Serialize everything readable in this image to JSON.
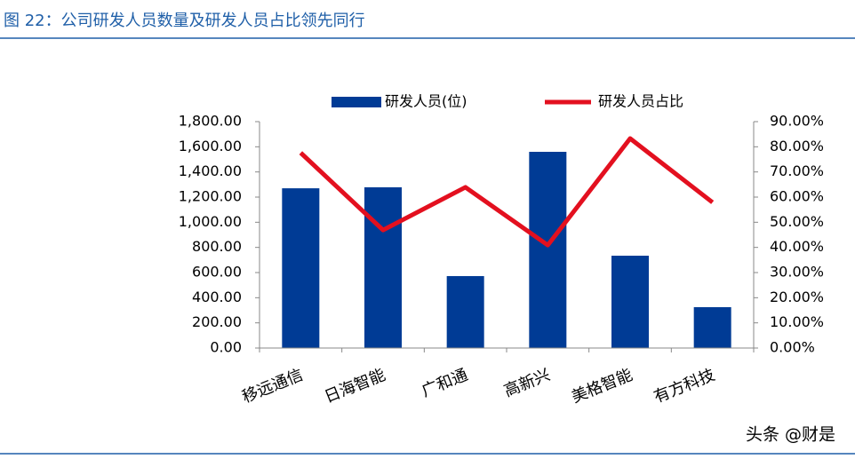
{
  "header": {
    "title": "图 22：公司研发人员数量及研发人员占比领先同行"
  },
  "watermark": "头条 @财是",
  "chart_data": {
    "type": "combo",
    "categories": [
      "移远通信",
      "日海智能",
      "广和通",
      "高新兴",
      "美格智能",
      "有方科技"
    ],
    "series": [
      {
        "name": "研发人员(位)",
        "type": "bar",
        "color": "#003b95",
        "axis": "y",
        "values": [
          1270,
          1278,
          572,
          1560,
          734,
          325
        ]
      },
      {
        "name": "研发人员占比",
        "type": "line",
        "color": "#e3101f",
        "axis": "y2",
        "values": [
          77.6,
          46.9,
          63.9,
          40.9,
          83.3,
          57.9
        ]
      }
    ],
    "ylim": [
      0,
      1800
    ],
    "yticks": [
      {
        "value": 0,
        "label": "0.00"
      },
      {
        "value": 200,
        "label": "200.00"
      },
      {
        "value": 400,
        "label": "400.00"
      },
      {
        "value": 600,
        "label": "600.00"
      },
      {
        "value": 800,
        "label": "800.00"
      },
      {
        "value": 1000,
        "label": "1,000.00"
      },
      {
        "value": 1200,
        "label": "1,200.00"
      },
      {
        "value": 1400,
        "label": "1,400.00"
      },
      {
        "value": 1600,
        "label": "1,600.00"
      },
      {
        "value": 1800,
        "label": "1,800.00"
      }
    ],
    "y2lim": [
      0,
      90
    ],
    "y2ticks": [
      {
        "value": 0,
        "label": "0.00%"
      },
      {
        "value": 10,
        "label": "10.00%"
      },
      {
        "value": 20,
        "label": "20.00%"
      },
      {
        "value": 30,
        "label": "30.00%"
      },
      {
        "value": 40,
        "label": "40.00%"
      },
      {
        "value": 50,
        "label": "50.00%"
      },
      {
        "value": 60,
        "label": "60.00%"
      },
      {
        "value": 70,
        "label": "70.00%"
      },
      {
        "value": 80,
        "label": "80.00%"
      },
      {
        "value": 90,
        "label": "90.00%"
      }
    ],
    "legend": "top"
  }
}
